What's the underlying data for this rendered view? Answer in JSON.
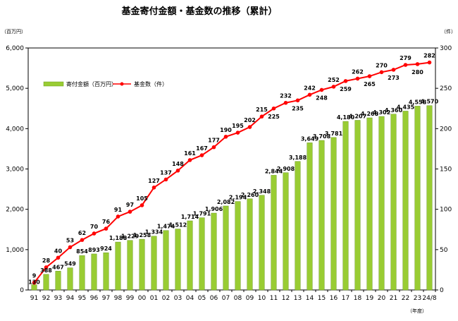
{
  "chart_data": {
    "type": "bar+line",
    "title": "基金寄付金額・基金数の推移（累計）",
    "left_axis_unit": "（百万円）",
    "right_axis_unit": "（件）",
    "x_axis_unit": "（年度）",
    "categories": [
      "91",
      "92",
      "93",
      "94",
      "95",
      "96",
      "97",
      "98",
      "99",
      "00",
      "01",
      "02",
      "03",
      "04",
      "05",
      "06",
      "07",
      "08",
      "09",
      "10",
      "11",
      "12",
      "13",
      "14",
      "15",
      "16",
      "17",
      "18",
      "19",
      "20",
      "21",
      "22",
      "23",
      "24/8"
    ],
    "y_left": {
      "min": 0,
      "max": 6000,
      "ticks": [
        "0",
        "1,000",
        "2,000",
        "3,000",
        "4,000",
        "5,000",
        "6,000"
      ],
      "tick_values": [
        0,
        1000,
        2000,
        3000,
        4000,
        5000,
        6000
      ]
    },
    "y_right": {
      "min": 0,
      "max": 300,
      "ticks": [
        "0",
        "50",
        "100",
        "150",
        "200",
        "250",
        "300"
      ],
      "tick_values": [
        0,
        50,
        100,
        150,
        200,
        250,
        300
      ]
    },
    "grid": false,
    "legend_position": "top-left",
    "series": [
      {
        "name": "寄付金額（百万円）",
        "kind": "bar",
        "axis": "left",
        "color": "#99CC33",
        "values": [
          130,
          388,
          467,
          549,
          854,
          893,
          924,
          1188,
          1229,
          1258,
          1334,
          1474,
          1512,
          1714,
          1791,
          1906,
          2082,
          2194,
          2260,
          2348,
          2844,
          2908,
          3188,
          3649,
          3708,
          3781,
          4180,
          4207,
          4268,
          4302,
          4360,
          4435,
          4558,
          4570
        ],
        "labels": [
          "130",
          "388",
          "467",
          "549",
          "854",
          "893",
          "924",
          "1,188",
          "1,229",
          "1,258",
          "1,334",
          "1,474",
          "1,512",
          "1,714",
          "1,791",
          "1,906",
          "2,082",
          "2,194",
          "2,260",
          "2,348",
          "2,844",
          "2,908",
          "3,188",
          "3,649",
          "3,708",
          "3,781",
          "4,180",
          "4,207",
          "4,268",
          "4,302",
          "4,360",
          "4,435",
          "4,558",
          "4,570"
        ]
      },
      {
        "name": "基金数（件）",
        "kind": "line",
        "axis": "right",
        "color": "#FF0000",
        "values": [
          9,
          28,
          40,
          53,
          62,
          70,
          76,
          91,
          97,
          105,
          127,
          137,
          148,
          161,
          167,
          177,
          190,
          195,
          202,
          215,
          225,
          232,
          235,
          242,
          248,
          252,
          259,
          262,
          265,
          270,
          273,
          279,
          280,
          282
        ],
        "labels": [
          "9",
          "28",
          "40",
          "53",
          "62",
          "70",
          "76",
          "91",
          "97",
          "105",
          "127",
          "137",
          "148",
          "161",
          "167",
          "177",
          "190",
          "195",
          "202",
          "215",
          "225",
          "232",
          "235",
          "242",
          "248",
          "252",
          "259",
          "262",
          "265",
          "270",
          "273",
          "279",
          "280",
          "282"
        ]
      }
    ]
  }
}
